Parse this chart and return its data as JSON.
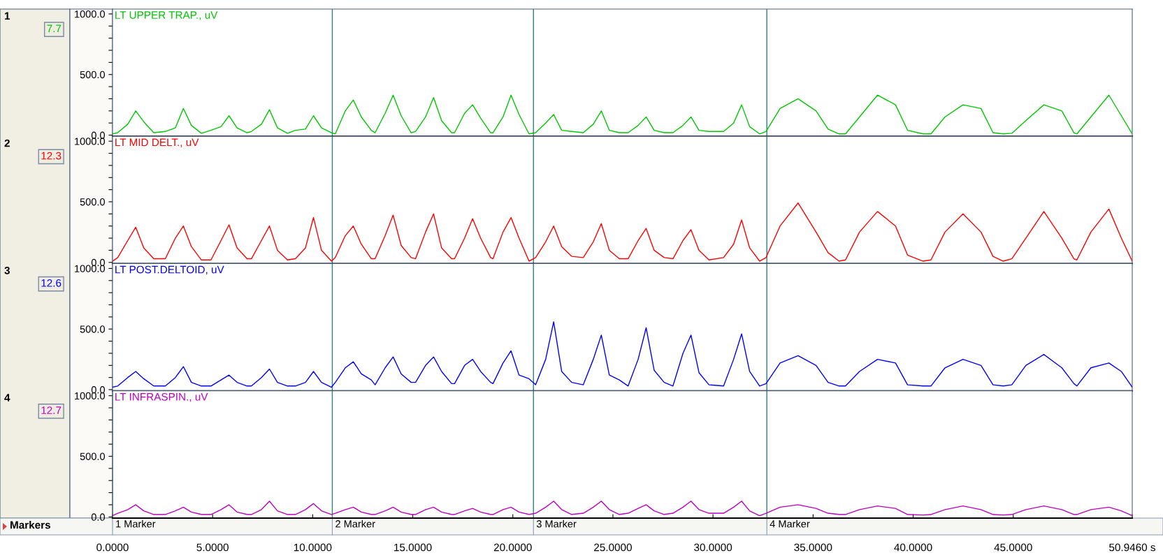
{
  "chart_data": [
    {
      "type": "line",
      "title": "LT UPPER TRAP., uV",
      "annotations": [
        "1",
        "7.7"
      ],
      "tick_labels": "y",
      "xlim": [
        0,
        50.946
      ],
      "ylim": [
        -10,
        1040
      ],
      "yticks": [
        {
          "value": 0,
          "label": "0.0"
        },
        {
          "value": 100,
          "label": null
        },
        {
          "value": 200,
          "label": null
        },
        {
          "value": 300,
          "label": null
        },
        {
          "value": 400,
          "label": null
        },
        {
          "value": 500,
          "label": "500.0"
        },
        {
          "value": 600,
          "label": null
        },
        {
          "value": 700,
          "label": null
        },
        {
          "value": 800,
          "label": null
        },
        {
          "value": 900,
          "label": null
        },
        {
          "value": 1000,
          "label": "1000.0"
        }
      ],
      "ref_lines": [
        {
          "axis": "x",
          "value": 10.98,
          "color": "#2e7f8c"
        },
        {
          "axis": "x",
          "value": 21.03,
          "color": "#2e7f8c"
        },
        {
          "axis": "x",
          "value": 32.69,
          "color": "#2e7f8c"
        }
      ],
      "x": [
        0.0,
        0.26,
        0.76,
        1.16,
        1.56,
        2.06,
        2.64,
        3.14,
        3.54,
        3.94,
        4.44,
        4.92,
        5.42,
        5.82,
        6.22,
        6.72,
        6.94,
        7.44,
        7.84,
        8.24,
        8.74,
        9.14,
        9.64,
        10.04,
        10.44,
        10.94,
        11.13,
        11.63,
        12.03,
        12.43,
        12.93,
        13.12,
        13.62,
        14.02,
        14.42,
        14.92,
        15.14,
        15.64,
        16.04,
        16.44,
        16.94,
        17.09,
        17.59,
        17.99,
        18.39,
        18.89,
        19.01,
        19.51,
        19.91,
        20.31,
        20.81,
        21.14,
        21.64,
        22.04,
        22.44,
        22.94,
        23.52,
        24.02,
        24.42,
        24.82,
        25.32,
        25.76,
        26.26,
        26.66,
        27.06,
        27.56,
        28.0,
        28.5,
        28.9,
        29.3,
        29.8,
        30.53,
        31.03,
        31.43,
        31.83,
        32.33,
        32.65,
        33.35,
        34.25,
        35.15,
        35.75,
        36.3,
        36.62,
        37.32,
        38.22,
        39.12,
        39.72,
        40.5,
        40.89,
        41.59,
        42.49,
        43.39,
        43.99,
        44.5,
        44.93,
        45.63,
        46.53,
        47.43,
        48.03,
        48.18,
        48.88,
        49.78,
        50.4,
        50.946
      ],
      "series": [
        {
          "color": "#00c800",
          "values": [
            10,
            20,
            90,
            200,
            110,
            20,
            30,
            60,
            220,
            80,
            15,
            40,
            70,
            160,
            60,
            20,
            30,
            90,
            210,
            60,
            15,
            40,
            50,
            160,
            60,
            20,
            10,
            200,
            290,
            150,
            40,
            20,
            180,
            330,
            160,
            20,
            30,
            150,
            310,
            120,
            20,
            20,
            180,
            250,
            140,
            20,
            20,
            150,
            330,
            170,
            10,
            20,
            100,
            170,
            40,
            30,
            20,
            90,
            200,
            40,
            20,
            20,
            80,
            150,
            40,
            20,
            20,
            80,
            150,
            40,
            30,
            30,
            100,
            250,
            70,
            10,
            30,
            220,
            300,
            200,
            50,
            10,
            10,
            150,
            330,
            250,
            40,
            10,
            10,
            150,
            250,
            220,
            20,
            10,
            15,
            120,
            250,
            200,
            20,
            10,
            150,
            330,
            160,
            10
          ]
        }
      ]
    },
    {
      "type": "line",
      "title": "LT MID DELT., uV",
      "annotations": [
        "2",
        "12.3"
      ],
      "tick_labels": "y",
      "xlim": [
        0,
        50.946
      ],
      "ylim": [
        -10,
        1040
      ],
      "yticks": [
        {
          "value": 0,
          "label": "0.0"
        },
        {
          "value": 100,
          "label": null
        },
        {
          "value": 200,
          "label": null
        },
        {
          "value": 300,
          "label": null
        },
        {
          "value": 400,
          "label": null
        },
        {
          "value": 500,
          "label": "500.0"
        },
        {
          "value": 600,
          "label": null
        },
        {
          "value": 700,
          "label": null
        },
        {
          "value": 800,
          "label": null
        },
        {
          "value": 900,
          "label": null
        },
        {
          "value": 1000,
          "label": "1000.0"
        }
      ],
      "ref_lines": [
        {
          "axis": "x",
          "value": 10.98,
          "color": "#2e7f8c"
        },
        {
          "axis": "x",
          "value": 21.03,
          "color": "#2e7f8c"
        },
        {
          "axis": "x",
          "value": 32.69,
          "color": "#2e7f8c"
        }
      ],
      "x": [
        0.0,
        0.26,
        0.76,
        1.16,
        1.56,
        2.06,
        2.64,
        3.14,
        3.54,
        3.94,
        4.44,
        4.92,
        5.42,
        5.82,
        6.22,
        6.72,
        6.94,
        7.44,
        7.84,
        8.24,
        8.74,
        9.14,
        9.64,
        10.04,
        10.44,
        10.94,
        11.13,
        11.63,
        12.03,
        12.43,
        12.93,
        13.12,
        13.62,
        14.02,
        14.42,
        14.92,
        15.14,
        15.64,
        16.04,
        16.44,
        16.94,
        17.09,
        17.59,
        17.99,
        18.39,
        18.89,
        19.01,
        19.51,
        19.91,
        20.31,
        20.81,
        21.14,
        21.64,
        22.04,
        22.44,
        22.94,
        23.52,
        24.02,
        24.42,
        24.82,
        25.32,
        25.76,
        26.26,
        26.66,
        27.06,
        27.56,
        28.0,
        28.5,
        28.9,
        29.3,
        29.8,
        30.53,
        31.03,
        31.43,
        31.83,
        32.33,
        32.65,
        33.35,
        34.25,
        35.15,
        35.75,
        36.3,
        36.62,
        37.32,
        38.22,
        39.12,
        39.72,
        40.5,
        40.89,
        41.59,
        42.49,
        43.39,
        43.99,
        44.5,
        44.93,
        45.63,
        46.53,
        47.43,
        48.03,
        48.18,
        48.88,
        49.78,
        50.4,
        50.946
      ],
      "series": [
        {
          "color": "#ff0000",
          "values": [
            10,
            40,
            180,
            290,
            120,
            30,
            30,
            200,
            300,
            130,
            20,
            20,
            180,
            310,
            120,
            30,
            30,
            180,
            300,
            100,
            20,
            30,
            120,
            370,
            100,
            10,
            40,
            220,
            300,
            150,
            30,
            30,
            220,
            390,
            140,
            40,
            30,
            250,
            400,
            120,
            30,
            30,
            200,
            360,
            200,
            40,
            30,
            250,
            370,
            200,
            10,
            40,
            170,
            300,
            130,
            50,
            40,
            170,
            320,
            100,
            30,
            30,
            180,
            280,
            100,
            40,
            30,
            180,
            270,
            100,
            20,
            40,
            150,
            350,
            120,
            10,
            40,
            300,
            490,
            250,
            80,
            10,
            20,
            250,
            420,
            300,
            60,
            10,
            20,
            250,
            400,
            250,
            50,
            10,
            30,
            200,
            420,
            200,
            30,
            20,
            250,
            440,
            200,
            10
          ]
        }
      ]
    },
    {
      "type": "line",
      "title": "LT POST.DELTOID, uV",
      "annotations": [
        "3",
        "12.6"
      ],
      "tick_labels": "y",
      "xlim": [
        0,
        50.946
      ],
      "ylim": [
        -10,
        1040
      ],
      "yticks": [
        {
          "value": 0,
          "label": "0.0"
        },
        {
          "value": 100,
          "label": null
        },
        {
          "value": 200,
          "label": null
        },
        {
          "value": 300,
          "label": null
        },
        {
          "value": 400,
          "label": null
        },
        {
          "value": 500,
          "label": "500.0"
        },
        {
          "value": 600,
          "label": null
        },
        {
          "value": 700,
          "label": null
        },
        {
          "value": 800,
          "label": null
        },
        {
          "value": 900,
          "label": null
        },
        {
          "value": 1000,
          "label": "1000.0"
        }
      ],
      "ref_lines": [
        {
          "axis": "x",
          "value": 10.98,
          "color": "#2e7f8c"
        },
        {
          "axis": "x",
          "value": 21.03,
          "color": "#2e7f8c"
        },
        {
          "axis": "x",
          "value": 32.69,
          "color": "#2e7f8c"
        }
      ],
      "x": [
        0.0,
        0.26,
        0.76,
        1.16,
        1.56,
        2.06,
        2.64,
        3.14,
        3.54,
        3.94,
        4.44,
        4.92,
        5.42,
        5.82,
        6.22,
        6.72,
        6.94,
        7.44,
        7.84,
        8.24,
        8.74,
        9.14,
        9.64,
        10.04,
        10.44,
        10.94,
        11.13,
        11.63,
        12.03,
        12.43,
        12.93,
        13.12,
        13.62,
        14.02,
        14.42,
        14.92,
        15.14,
        15.64,
        16.04,
        16.44,
        16.94,
        17.09,
        17.59,
        17.99,
        18.39,
        18.89,
        19.01,
        19.51,
        19.91,
        20.31,
        20.81,
        21.14,
        21.64,
        22.04,
        22.44,
        22.94,
        23.52,
        24.02,
        24.42,
        24.82,
        25.32,
        25.76,
        26.26,
        26.66,
        27.06,
        27.56,
        28.0,
        28.5,
        28.9,
        29.3,
        29.8,
        30.53,
        31.03,
        31.43,
        31.83,
        32.33,
        32.65,
        33.35,
        34.25,
        35.15,
        35.75,
        36.3,
        36.62,
        37.32,
        38.22,
        39.12,
        39.72,
        40.5,
        40.89,
        41.59,
        42.49,
        43.39,
        43.99,
        44.5,
        44.93,
        45.63,
        46.53,
        47.43,
        48.03,
        48.18,
        48.88,
        49.78,
        50.4,
        50.946
      ],
      "series": [
        {
          "color": "#0000ff",
          "values": [
            20,
            30,
            100,
            150,
            90,
            30,
            30,
            100,
            190,
            60,
            30,
            30,
            80,
            120,
            60,
            30,
            30,
            100,
            170,
            60,
            30,
            30,
            60,
            150,
            60,
            20,
            60,
            180,
            230,
            130,
            80,
            40,
            180,
            270,
            130,
            60,
            60,
            200,
            270,
            150,
            50,
            50,
            200,
            250,
            150,
            60,
            50,
            220,
            320,
            120,
            90,
            40,
            250,
            560,
            150,
            60,
            40,
            250,
            450,
            120,
            80,
            30,
            250,
            510,
            160,
            60,
            30,
            300,
            450,
            140,
            40,
            30,
            250,
            460,
            150,
            30,
            50,
            220,
            280,
            200,
            60,
            30,
            30,
            150,
            250,
            220,
            40,
            30,
            30,
            180,
            250,
            200,
            40,
            30,
            40,
            200,
            290,
            180,
            50,
            30,
            180,
            220,
            150,
            20
          ]
        }
      ]
    },
    {
      "type": "line",
      "title": "LT INFRASPIN., uV",
      "annotations": [
        "4",
        "12.7",
        "Markers"
      ],
      "xlim": [
        0,
        50.946
      ],
      "ylim": [
        -10,
        1040
      ],
      "yticks": [
        {
          "value": 0,
          "label": "0.0"
        },
        {
          "value": 100,
          "label": null
        },
        {
          "value": 200,
          "label": null
        },
        {
          "value": 300,
          "label": null
        },
        {
          "value": 400,
          "label": null
        },
        {
          "value": 500,
          "label": "500.0"
        },
        {
          "value": 600,
          "label": null
        },
        {
          "value": 700,
          "label": null
        },
        {
          "value": 800,
          "label": null
        },
        {
          "value": 900,
          "label": null
        },
        {
          "value": 1000,
          "label": "1000.0"
        }
      ],
      "xticks": [
        {
          "value": 0,
          "label": "0.0000"
        },
        {
          "value": 5,
          "label": "5.0000"
        },
        {
          "value": 10,
          "label": "10.0000"
        },
        {
          "value": 15,
          "label": "15.0000"
        },
        {
          "value": 20,
          "label": "20.0000"
        },
        {
          "value": 25,
          "label": "25.0000"
        },
        {
          "value": 30,
          "label": "30.0000"
        },
        {
          "value": 35,
          "label": "35.0000"
        },
        {
          "value": 40,
          "label": "40.0000"
        },
        {
          "value": 45,
          "label": "45.0000"
        },
        {
          "value": 50.946,
          "label": "50.9460 s"
        }
      ],
      "ref_lines": [
        {
          "axis": "x",
          "value": 0,
          "label": "1 Marker",
          "color": "#2e7f8c"
        },
        {
          "axis": "x",
          "value": 10.98,
          "label": "2 Marker",
          "color": "#2e7f8c"
        },
        {
          "axis": "x",
          "value": 21.03,
          "label": "3 Marker",
          "color": "#2e7f8c"
        },
        {
          "axis": "x",
          "value": 32.69,
          "label": "4 Marker",
          "color": "#2e7f8c"
        }
      ],
      "x": [
        0.0,
        0.26,
        0.76,
        1.16,
        1.56,
        2.06,
        2.64,
        3.14,
        3.54,
        3.94,
        4.44,
        4.92,
        5.42,
        5.82,
        6.22,
        6.72,
        6.94,
        7.44,
        7.84,
        8.24,
        8.74,
        9.14,
        9.64,
        10.04,
        10.44,
        10.94,
        11.13,
        11.63,
        12.03,
        12.43,
        12.93,
        13.12,
        13.62,
        14.02,
        14.42,
        14.92,
        15.14,
        15.64,
        16.04,
        16.44,
        16.94,
        17.09,
        17.59,
        17.99,
        18.39,
        18.89,
        19.01,
        19.51,
        19.91,
        20.31,
        20.81,
        21.14,
        21.64,
        22.04,
        22.44,
        22.94,
        23.52,
        24.02,
        24.42,
        24.82,
        25.32,
        25.76,
        26.26,
        26.66,
        27.06,
        27.56,
        28.0,
        28.5,
        28.9,
        29.3,
        29.8,
        30.53,
        31.03,
        31.43,
        31.83,
        32.33,
        32.65,
        33.35,
        34.25,
        35.15,
        35.75,
        36.3,
        36.62,
        37.32,
        38.22,
        39.12,
        39.72,
        40.5,
        40.89,
        41.59,
        42.49,
        43.39,
        43.99,
        44.5,
        44.93,
        45.63,
        46.53,
        47.43,
        48.03,
        48.18,
        48.88,
        49.78,
        50.4,
        50.946
      ],
      "series": [
        {
          "color": "#c000c0",
          "values": [
            10,
            30,
            60,
            100,
            50,
            20,
            20,
            50,
            80,
            40,
            20,
            20,
            60,
            100,
            40,
            20,
            20,
            60,
            130,
            50,
            20,
            20,
            60,
            110,
            50,
            20,
            30,
            60,
            80,
            40,
            20,
            20,
            50,
            80,
            40,
            20,
            20,
            60,
            80,
            40,
            20,
            20,
            50,
            70,
            40,
            20,
            20,
            60,
            80,
            40,
            20,
            30,
            80,
            130,
            60,
            20,
            30,
            80,
            130,
            60,
            20,
            30,
            70,
            100,
            50,
            20,
            30,
            80,
            130,
            60,
            30,
            30,
            80,
            130,
            50,
            10,
            30,
            80,
            100,
            70,
            30,
            20,
            20,
            60,
            90,
            70,
            20,
            15,
            20,
            60,
            90,
            60,
            20,
            15,
            20,
            60,
            90,
            60,
            20,
            20,
            60,
            80,
            50,
            10
          ]
        }
      ]
    }
  ]
}
